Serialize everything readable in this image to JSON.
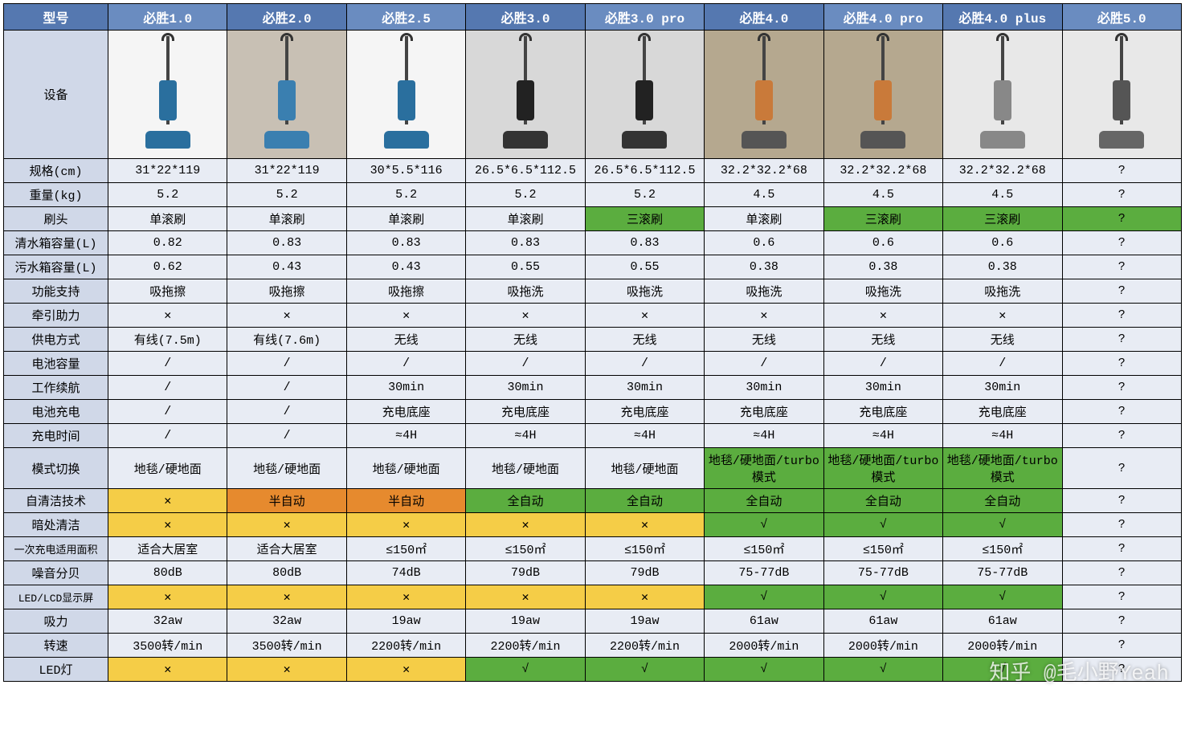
{
  "watermark": "知乎 @毛小野Yeah",
  "header": {
    "label": "型号",
    "models": [
      "必胜1.0",
      "必胜2.0",
      "必胜2.5",
      "必胜3.0",
      "必胜3.0 pro",
      "必胜4.0",
      "必胜4.0 pro",
      "必胜4.0 plus",
      "必胜5.0"
    ]
  },
  "device_row_label": "设备",
  "device_colors": [
    {
      "body": "#2a6f9e",
      "base": "#2a6f9e",
      "bg": "#f5f5f5"
    },
    {
      "body": "#3a7fb0",
      "base": "#3a7fb0",
      "bg": "#c8c0b4"
    },
    {
      "body": "#2a6f9e",
      "base": "#2a6f9e",
      "bg": "#f5f5f5"
    },
    {
      "body": "#222",
      "base": "#333",
      "bg": "#d8d8d8"
    },
    {
      "body": "#222",
      "base": "#333",
      "bg": "#d8d8d8"
    },
    {
      "body": "#c97a3a",
      "base": "#555",
      "bg": "#b5a88f"
    },
    {
      "body": "#c97a3a",
      "base": "#555",
      "bg": "#b5a88f"
    },
    {
      "body": "#888",
      "base": "#888",
      "bg": "#e8e8e8"
    },
    {
      "body": "#555",
      "base": "#666",
      "bg": "#e8e8e8"
    }
  ],
  "rows": [
    {
      "label": "规格(cm)",
      "cells": [
        {
          "v": "31*22*119"
        },
        {
          "v": "31*22*119"
        },
        {
          "v": "30*5.5*116"
        },
        {
          "v": "26.5*6.5*112.5"
        },
        {
          "v": "26.5*6.5*112.5"
        },
        {
          "v": "32.2*32.2*68"
        },
        {
          "v": "32.2*32.2*68"
        },
        {
          "v": "32.2*32.2*68"
        },
        {
          "v": "?"
        }
      ]
    },
    {
      "label": "重量(kg)",
      "cells": [
        {
          "v": "5.2"
        },
        {
          "v": "5.2"
        },
        {
          "v": "5.2"
        },
        {
          "v": "5.2"
        },
        {
          "v": "5.2"
        },
        {
          "v": "4.5"
        },
        {
          "v": "4.5"
        },
        {
          "v": "4.5"
        },
        {
          "v": "?"
        }
      ]
    },
    {
      "label": "刷头",
      "cells": [
        {
          "v": "单滚刷"
        },
        {
          "v": "单滚刷"
        },
        {
          "v": "单滚刷"
        },
        {
          "v": "单滚刷"
        },
        {
          "v": "三滚刷",
          "c": "green"
        },
        {
          "v": "单滚刷"
        },
        {
          "v": "三滚刷",
          "c": "green"
        },
        {
          "v": "三滚刷",
          "c": "green"
        },
        {
          "v": "?",
          "c": "green"
        }
      ]
    },
    {
      "label": "清水箱容量(L)",
      "cells": [
        {
          "v": "0.82"
        },
        {
          "v": "0.83"
        },
        {
          "v": "0.83"
        },
        {
          "v": "0.83"
        },
        {
          "v": "0.83"
        },
        {
          "v": "0.6"
        },
        {
          "v": "0.6"
        },
        {
          "v": "0.6"
        },
        {
          "v": "?"
        }
      ]
    },
    {
      "label": "污水箱容量(L)",
      "cells": [
        {
          "v": "0.62"
        },
        {
          "v": "0.43"
        },
        {
          "v": "0.43"
        },
        {
          "v": "0.55"
        },
        {
          "v": "0.55"
        },
        {
          "v": "0.38"
        },
        {
          "v": "0.38"
        },
        {
          "v": "0.38"
        },
        {
          "v": "?"
        }
      ]
    },
    {
      "label": "功能支持",
      "cells": [
        {
          "v": "吸拖擦"
        },
        {
          "v": "吸拖擦"
        },
        {
          "v": "吸拖擦"
        },
        {
          "v": "吸拖洗"
        },
        {
          "v": "吸拖洗"
        },
        {
          "v": "吸拖洗"
        },
        {
          "v": "吸拖洗"
        },
        {
          "v": "吸拖洗"
        },
        {
          "v": "?"
        }
      ]
    },
    {
      "label": "牵引助力",
      "cells": [
        {
          "v": "✕"
        },
        {
          "v": "✕"
        },
        {
          "v": "✕"
        },
        {
          "v": "✕"
        },
        {
          "v": "✕"
        },
        {
          "v": "✕"
        },
        {
          "v": "✕"
        },
        {
          "v": "✕"
        },
        {
          "v": "?"
        }
      ]
    },
    {
      "label": "供电方式",
      "cells": [
        {
          "v": "有线(7.5m)"
        },
        {
          "v": "有线(7.6m)"
        },
        {
          "v": "无线"
        },
        {
          "v": "无线"
        },
        {
          "v": "无线"
        },
        {
          "v": "无线"
        },
        {
          "v": "无线"
        },
        {
          "v": "无线"
        },
        {
          "v": "?"
        }
      ]
    },
    {
      "label": "电池容量",
      "cells": [
        {
          "v": "/"
        },
        {
          "v": "/"
        },
        {
          "v": "/"
        },
        {
          "v": "/"
        },
        {
          "v": "/"
        },
        {
          "v": "/"
        },
        {
          "v": "/"
        },
        {
          "v": "/"
        },
        {
          "v": "?"
        }
      ]
    },
    {
      "label": "工作续航",
      "cells": [
        {
          "v": "/"
        },
        {
          "v": "/"
        },
        {
          "v": "30min"
        },
        {
          "v": "30min"
        },
        {
          "v": "30min"
        },
        {
          "v": "30min"
        },
        {
          "v": "30min"
        },
        {
          "v": "30min"
        },
        {
          "v": "?"
        }
      ]
    },
    {
      "label": "电池充电",
      "cells": [
        {
          "v": "/"
        },
        {
          "v": "/"
        },
        {
          "v": "充电底座"
        },
        {
          "v": "充电底座"
        },
        {
          "v": "充电底座"
        },
        {
          "v": "充电底座"
        },
        {
          "v": "充电底座"
        },
        {
          "v": "充电底座"
        },
        {
          "v": "?"
        }
      ]
    },
    {
      "label": "充电时间",
      "cells": [
        {
          "v": "/"
        },
        {
          "v": "/"
        },
        {
          "v": "≈4H"
        },
        {
          "v": "≈4H"
        },
        {
          "v": "≈4H"
        },
        {
          "v": "≈4H"
        },
        {
          "v": "≈4H"
        },
        {
          "v": "≈4H"
        },
        {
          "v": "?"
        }
      ]
    },
    {
      "label": "模式切换",
      "height": 48,
      "cells": [
        {
          "v": "地毯/硬地面"
        },
        {
          "v": "地毯/硬地面"
        },
        {
          "v": "地毯/硬地面"
        },
        {
          "v": "地毯/硬地面"
        },
        {
          "v": "地毯/硬地面"
        },
        {
          "v": "地毯/硬地面/turbo模式",
          "c": "green"
        },
        {
          "v": "地毯/硬地面/turbo模式",
          "c": "green"
        },
        {
          "v": "地毯/硬地面/turbo模式",
          "c": "green"
        },
        {
          "v": "?"
        }
      ]
    },
    {
      "label": "自清洁技术",
      "cells": [
        {
          "v": "✕",
          "c": "yellow"
        },
        {
          "v": "半自动",
          "c": "orange"
        },
        {
          "v": "半自动",
          "c": "orange"
        },
        {
          "v": "全自动",
          "c": "green"
        },
        {
          "v": "全自动",
          "c": "green"
        },
        {
          "v": "全自动",
          "c": "green"
        },
        {
          "v": "全自动",
          "c": "green"
        },
        {
          "v": "全自动",
          "c": "green"
        },
        {
          "v": "?"
        }
      ]
    },
    {
      "label": "暗处清洁",
      "cells": [
        {
          "v": "✕",
          "c": "yellow"
        },
        {
          "v": "✕",
          "c": "yellow"
        },
        {
          "v": "✕",
          "c": "yellow"
        },
        {
          "v": "✕",
          "c": "yellow"
        },
        {
          "v": "✕",
          "c": "yellow"
        },
        {
          "v": "√",
          "c": "green"
        },
        {
          "v": "√",
          "c": "green"
        },
        {
          "v": "√",
          "c": "green"
        },
        {
          "v": "?"
        }
      ]
    },
    {
      "label": "一次充电适用面积",
      "small": true,
      "cells": [
        {
          "v": "适合大居室"
        },
        {
          "v": "适合大居室"
        },
        {
          "v": "≤150㎡"
        },
        {
          "v": "≤150㎡"
        },
        {
          "v": "≤150㎡"
        },
        {
          "v": "≤150㎡"
        },
        {
          "v": "≤150㎡"
        },
        {
          "v": "≤150㎡"
        },
        {
          "v": "?"
        }
      ]
    },
    {
      "label": "噪音分贝",
      "cells": [
        {
          "v": "80dB"
        },
        {
          "v": "80dB"
        },
        {
          "v": "74dB"
        },
        {
          "v": "79dB"
        },
        {
          "v": "79dB"
        },
        {
          "v": "75-77dB"
        },
        {
          "v": "75-77dB"
        },
        {
          "v": "75-77dB"
        },
        {
          "v": "?"
        }
      ]
    },
    {
      "label": "LED/LCD显示屏",
      "small": true,
      "cells": [
        {
          "v": "✕",
          "c": "yellow"
        },
        {
          "v": "✕",
          "c": "yellow"
        },
        {
          "v": "✕",
          "c": "yellow"
        },
        {
          "v": "✕",
          "c": "yellow"
        },
        {
          "v": "✕",
          "c": "yellow"
        },
        {
          "v": "√",
          "c": "green"
        },
        {
          "v": "√",
          "c": "green"
        },
        {
          "v": "√",
          "c": "green"
        },
        {
          "v": "?"
        }
      ]
    },
    {
      "label": "吸力",
      "cells": [
        {
          "v": "32aw"
        },
        {
          "v": "32aw"
        },
        {
          "v": "19aw"
        },
        {
          "v": "19aw"
        },
        {
          "v": "19aw"
        },
        {
          "v": "61aw"
        },
        {
          "v": "61aw"
        },
        {
          "v": "61aw"
        },
        {
          "v": "?"
        }
      ]
    },
    {
      "label": "转速",
      "cells": [
        {
          "v": "3500转/min"
        },
        {
          "v": "3500转/min"
        },
        {
          "v": "2200转/min"
        },
        {
          "v": "2200转/min"
        },
        {
          "v": "2200转/min"
        },
        {
          "v": "2000转/min"
        },
        {
          "v": "2000转/min"
        },
        {
          "v": "2000转/min"
        },
        {
          "v": "?"
        }
      ]
    },
    {
      "label": "LED灯",
      "cells": [
        {
          "v": "✕",
          "c": "yellow"
        },
        {
          "v": "✕",
          "c": "yellow"
        },
        {
          "v": "✕",
          "c": "yellow"
        },
        {
          "v": "√",
          "c": "green"
        },
        {
          "v": "√",
          "c": "green"
        },
        {
          "v": "√",
          "c": "green"
        },
        {
          "v": "√",
          "c": "green"
        },
        {
          "v": "√",
          "c": "green"
        },
        {
          "v": "?"
        }
      ]
    }
  ]
}
